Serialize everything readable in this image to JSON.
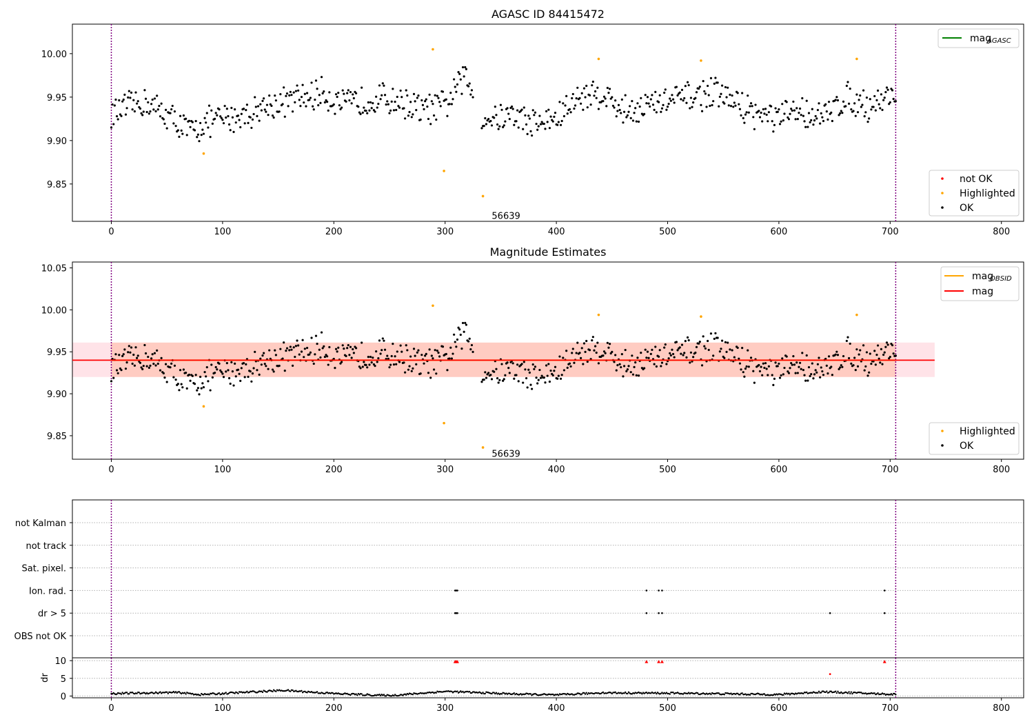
{
  "colors": {
    "ok": "#000000",
    "highlighted": "#ffa500",
    "not_ok": "#ff0000",
    "mag_agasc": "#008000",
    "mag_obsid": "#ffa500",
    "mag": "#ff0000",
    "band_outer": "#ffc0cb",
    "band_inner": "#ffa07a",
    "obs_boundary": "#800080",
    "grid": "#b0b0b0"
  },
  "chart_data": [
    {
      "type": "scatter",
      "title": "AGASC ID 84415472",
      "xlim": [
        -35,
        820
      ],
      "ylim": [
        9.807,
        10.034
      ],
      "xticks": [
        0,
        100,
        200,
        300,
        400,
        500,
        600,
        700,
        800
      ],
      "yticks": [
        9.85,
        9.9,
        9.95,
        10.0
      ],
      "ytick_labels": [
        "9.85",
        "9.90",
        "9.95",
        "10.00"
      ],
      "obs_boundaries": [
        0,
        705
      ],
      "annotation": {
        "text": "56639",
        "x": 337,
        "y": 9.813
      },
      "legend_lines": [
        {
          "label": "mag",
          "sub": "AGASC",
          "color_key": "mag_agasc",
          "y": null
        }
      ],
      "legend_points": [
        {
          "label": "not OK",
          "color_key": "not_ok"
        },
        {
          "label": "Highlighted",
          "color_key": "highlighted"
        },
        {
          "label": "OK",
          "color_key": "ok"
        }
      ],
      "series": [
        {
          "name": "Highlighted",
          "color_key": "highlighted",
          "x": [
            83,
            289,
            299,
            334,
            438,
            530,
            670
          ],
          "y": [
            9.885,
            10.005,
            9.865,
            9.836,
            9.994,
            9.992,
            9.994
          ]
        }
      ],
      "ok_trend": {
        "start": 0,
        "end": 705,
        "step": 1,
        "knots": [
          [
            0,
            9.93
          ],
          [
            30,
            9.945
          ],
          [
            55,
            9.925
          ],
          [
            70,
            9.91
          ],
          [
            85,
            9.92
          ],
          [
            100,
            9.925
          ],
          [
            120,
            9.93
          ],
          [
            140,
            9.94
          ],
          [
            160,
            9.945
          ],
          [
            190,
            9.955
          ],
          [
            210,
            9.94
          ],
          [
            240,
            9.95
          ],
          [
            260,
            9.945
          ],
          [
            280,
            9.935
          ],
          [
            300,
            9.94
          ],
          [
            318,
            9.975
          ],
          [
            335,
            9.925
          ],
          [
            360,
            9.93
          ],
          [
            380,
            9.92
          ],
          [
            400,
            9.925
          ],
          [
            420,
            9.95
          ],
          [
            440,
            9.955
          ],
          [
            460,
            9.935
          ],
          [
            480,
            9.94
          ],
          [
            500,
            9.945
          ],
          [
            520,
            9.95
          ],
          [
            540,
            9.955
          ],
          [
            560,
            9.945
          ],
          [
            580,
            9.93
          ],
          [
            600,
            9.925
          ],
          [
            620,
            9.935
          ],
          [
            640,
            9.925
          ],
          [
            660,
            9.95
          ],
          [
            680,
            9.94
          ],
          [
            705,
            9.955
          ]
        ],
        "scatter": 0.02,
        "gaps": [
          [
            326,
            332
          ]
        ]
      }
    },
    {
      "type": "scatter",
      "title": "Magnitude Estimates",
      "xlim": [
        -35,
        820
      ],
      "ylim": [
        9.822,
        10.057
      ],
      "xticks": [
        0,
        100,
        200,
        300,
        400,
        500,
        600,
        700,
        800
      ],
      "yticks": [
        9.85,
        9.9,
        9.95,
        10.0,
        10.05
      ],
      "ytick_labels": [
        "9.85",
        "9.90",
        "9.95",
        "10.00",
        "10.05"
      ],
      "obs_boundaries": [
        0,
        705
      ],
      "annotation": {
        "text": "56639",
        "x": 337,
        "y": 9.828
      },
      "band_outer": {
        "x": [
          -35,
          740
        ],
        "y": [
          9.92,
          9.961
        ]
      },
      "band_inner": {
        "x": [
          0,
          705
        ],
        "y": [
          9.92,
          9.961
        ]
      },
      "mag_line": {
        "x": [
          -35,
          740
        ],
        "y": 9.94
      },
      "legend_lines": [
        {
          "label": "mag",
          "sub": "OBSID",
          "color_key": "mag_obsid"
        },
        {
          "label": "mag",
          "sub": "",
          "color_key": "mag"
        }
      ],
      "legend_points": [
        {
          "label": "Highlighted",
          "color_key": "highlighted"
        },
        {
          "label": "OK",
          "color_key": "ok"
        }
      ],
      "series": [
        {
          "name": "Highlighted",
          "color_key": "highlighted",
          "x": [
            83,
            289,
            299,
            334,
            438,
            530,
            670
          ],
          "y": [
            9.885,
            10.005,
            9.865,
            9.836,
            9.994,
            9.992,
            9.994
          ]
        }
      ],
      "ok_trend_ref": 0
    },
    {
      "type": "scatter",
      "title": "",
      "xlim": [
        -35,
        820
      ],
      "flag_rows": [
        "not Kalman",
        "not track",
        "Sat. pixel.",
        "Ion. rad.",
        "dr > 5",
        "OBS not OK"
      ],
      "obs_boundaries": [
        0,
        705
      ],
      "flags": [
        {
          "row": "Ion. rad.",
          "x": [
            309,
            310,
            311,
            481,
            492,
            495,
            695
          ]
        },
        {
          "row": "dr > 5",
          "x": [
            309,
            310,
            311,
            481,
            492,
            495,
            646,
            695
          ]
        }
      ]
    },
    {
      "type": "scatter",
      "title": "",
      "ylabel": "dr",
      "xlim": [
        -35,
        820
      ],
      "ylim": [
        -0.5,
        10.8
      ],
      "xticks": [
        0,
        100,
        200,
        300,
        400,
        500,
        600,
        700,
        800
      ],
      "yticks": [
        0,
        5,
        10
      ],
      "ytick_labels": [
        "0",
        "5",
        "10"
      ],
      "obs_boundaries": [
        0,
        705
      ],
      "clipped": {
        "color_key": "not_ok",
        "x": [
          309,
          310,
          311,
          481,
          492,
          495,
          695
        ],
        "y": [
          9.7,
          9.7,
          9.7,
          9.7,
          9.7,
          9.7,
          9.7
        ]
      },
      "outlier": {
        "color_key": "not_ok",
        "x": [
          646
        ],
        "y": [
          6.2
        ]
      },
      "dr_trend": {
        "start": 0,
        "end": 705,
        "knots": [
          [
            0,
            0.7
          ],
          [
            60,
            1.0
          ],
          [
            80,
            0.4
          ],
          [
            130,
            1.2
          ],
          [
            155,
            1.6
          ],
          [
            200,
            0.7
          ],
          [
            250,
            0.1
          ],
          [
            300,
            1.3
          ],
          [
            360,
            0.6
          ],
          [
            400,
            0.3
          ],
          [
            440,
            0.9
          ],
          [
            500,
            0.8
          ],
          [
            560,
            0.6
          ],
          [
            600,
            0.4
          ],
          [
            640,
            1.2
          ],
          [
            700,
            0.5
          ]
        ],
        "scatter": 0.25
      }
    }
  ]
}
